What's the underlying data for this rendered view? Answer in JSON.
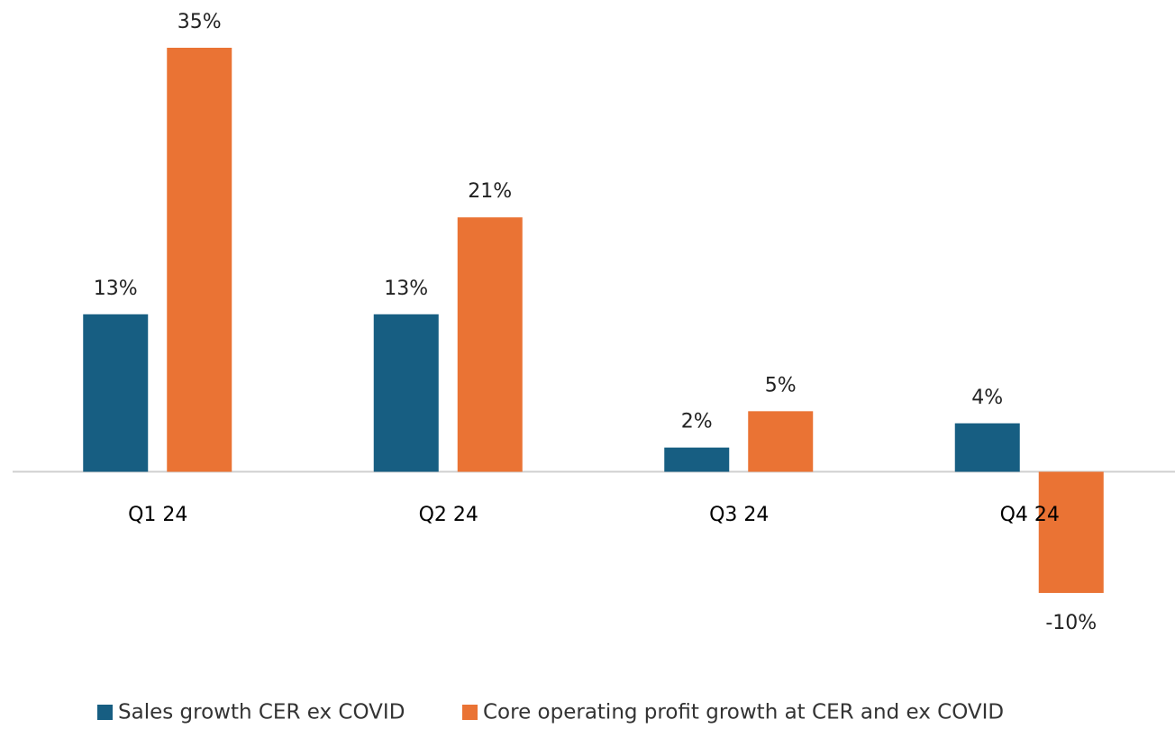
{
  "chart_data": {
    "type": "bar",
    "categories": [
      "Q1 24",
      "Q2 24",
      "Q3 24",
      "Q4 24"
    ],
    "series": [
      {
        "name": "Sales growth CER ex COVID",
        "color": "#175e82",
        "values": [
          13,
          13,
          2,
          4
        ],
        "value_labels": [
          "13%",
          "13%",
          "2%",
          "4%"
        ]
      },
      {
        "name": "Core operating profit growth at CER and ex COVID",
        "color": "#ea7334",
        "values": [
          35,
          21,
          5,
          -10
        ],
        "value_labels": [
          "35%",
          "21%",
          "5%",
          "-10%"
        ]
      }
    ]
  }
}
